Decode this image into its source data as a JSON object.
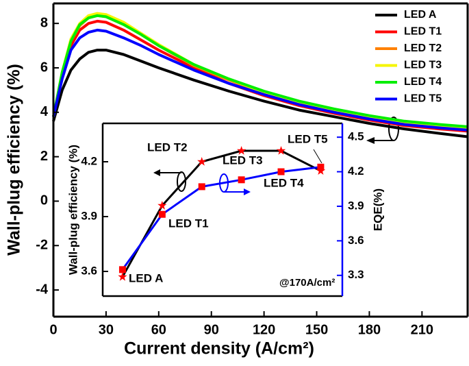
{
  "chart_data": [
    {
      "type": "line",
      "xlabel": "Current density (A/cm²)",
      "ylabel": "Wall-plug efficiency (%)",
      "x": [
        0,
        5,
        10,
        15,
        20,
        25,
        30,
        40,
        50,
        60,
        80,
        100,
        120,
        140,
        160,
        180,
        200,
        220,
        236
      ],
      "series": [
        {
          "name": "LED A",
          "color": "#000000",
          "values": [
            3.6,
            5.0,
            5.9,
            6.4,
            6.7,
            6.8,
            6.8,
            6.6,
            6.3,
            6.0,
            5.45,
            4.95,
            4.5,
            4.1,
            3.8,
            3.5,
            3.25,
            3.05,
            2.9
          ]
        },
        {
          "name": "LED T1",
          "color": "#ff0000",
          "values": [
            3.8,
            5.6,
            7.0,
            7.7,
            8.0,
            8.1,
            8.05,
            7.7,
            7.25,
            6.8,
            6.0,
            5.3,
            4.75,
            4.3,
            3.95,
            3.65,
            3.4,
            3.25,
            3.15
          ]
        },
        {
          "name": "LED T2",
          "color": "#ff8000",
          "values": [
            3.8,
            5.7,
            7.2,
            7.9,
            8.25,
            8.35,
            8.3,
            7.95,
            7.5,
            7.0,
            6.1,
            5.45,
            4.85,
            4.4,
            4.05,
            3.75,
            3.5,
            3.35,
            3.25
          ]
        },
        {
          "name": "LED T3",
          "color": "#f5f500",
          "values": [
            3.8,
            5.8,
            7.3,
            8.0,
            8.35,
            8.45,
            8.4,
            8.05,
            7.55,
            7.05,
            6.15,
            5.5,
            4.9,
            4.45,
            4.1,
            3.8,
            3.55,
            3.4,
            3.3
          ]
        },
        {
          "name": "LED T4",
          "color": "#00ee00",
          "values": [
            3.8,
            5.8,
            7.2,
            7.95,
            8.25,
            8.35,
            8.3,
            7.95,
            7.5,
            7.0,
            6.15,
            5.5,
            4.95,
            4.5,
            4.15,
            3.85,
            3.6,
            3.45,
            3.35
          ]
        },
        {
          "name": "LED T5",
          "color": "#0000ff",
          "values": [
            3.8,
            5.5,
            6.8,
            7.35,
            7.6,
            7.7,
            7.65,
            7.35,
            7.0,
            6.6,
            5.9,
            5.3,
            4.8,
            4.35,
            4.0,
            3.7,
            3.45,
            3.3,
            3.2
          ]
        }
      ],
      "xlim": [
        0,
        236
      ],
      "xticks": [
        0,
        30,
        60,
        90,
        120,
        150,
        180,
        210
      ],
      "ylim": [
        -5.2,
        8.9
      ],
      "yticks": [
        -4,
        -2,
        0,
        2,
        4,
        6,
        8
      ],
      "legend": "upper right"
    },
    {
      "type": "line",
      "ylabel": "Wall-plug efficiency (%)",
      "y2label": "EQE(%)",
      "x": [
        38,
        60,
        82,
        104,
        126,
        148
      ],
      "series": [
        {
          "color": "#000000",
          "marker": "star",
          "values": [
            3.57,
            3.96,
            4.2,
            4.26,
            4.26,
            4.15
          ]
        },
        {
          "color": "#0000ff",
          "marker": "square",
          "axis": "y2",
          "values": [
            3.35,
            3.83,
            4.07,
            4.13,
            4.2,
            4.24
          ]
        }
      ],
      "xlim": [
        27,
        160
      ],
      "ylim": [
        3.465,
        4.41
      ],
      "yticks": [
        3.6,
        3.9,
        4.2
      ],
      "y2lim": [
        3.12,
        4.62
      ],
      "y2ticks": [
        3.3,
        3.6,
        3.9,
        4.2,
        4.5
      ],
      "annotations": [
        "LED A",
        "LED T1",
        "LED T2",
        "LED T3",
        "LED T4",
        "LED T5",
        "@170A/cm²"
      ]
    }
  ]
}
